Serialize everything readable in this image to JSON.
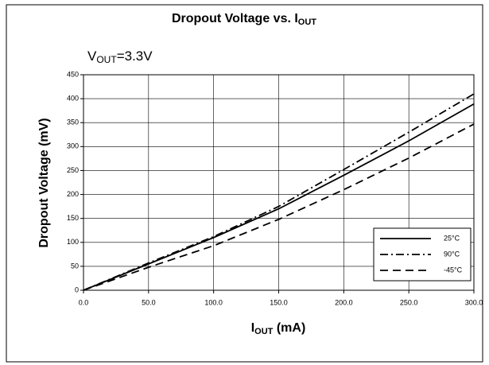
{
  "chart_data": {
    "type": "line",
    "title": {
      "text": "Dropout Voltage vs. I",
      "sub": "OUT"
    },
    "annotation": {
      "text": "V",
      "sub": "OUT",
      "tail": "=3.3V"
    },
    "xlabel": {
      "text": "I",
      "sub": "OUT",
      "tail": " (mA)"
    },
    "ylabel": "Dropout Voltage (mV)",
    "x": [
      0,
      50,
      100,
      150,
      200,
      250,
      300
    ],
    "series": [
      {
        "name": "25°C",
        "color": "#000000",
        "dash": "solid",
        "values": [
          0,
          55,
          110,
          170,
          240,
          312,
          389
        ]
      },
      {
        "name": "90°C",
        "color": "#000000",
        "dash": "dash-dot",
        "values": [
          0,
          57,
          112,
          175,
          252,
          330,
          410
        ]
      },
      {
        "name": "-45°C",
        "color": "#000000",
        "dash": "dash",
        "values": [
          0,
          48,
          93,
          148,
          210,
          276,
          347
        ]
      }
    ],
    "xlim": [
      0,
      300
    ],
    "xticks": [
      {
        "value": 0,
        "label": "0.0"
      },
      {
        "value": 50,
        "label": "50.0"
      },
      {
        "value": 100,
        "label": "100.0"
      },
      {
        "value": 150,
        "label": "150.0"
      },
      {
        "value": 200,
        "label": "200.0"
      },
      {
        "value": 250,
        "label": "250.0"
      },
      {
        "value": 300,
        "label": "300.0"
      }
    ],
    "ylim": [
      0,
      450
    ],
    "yticks": [
      0,
      50,
      100,
      150,
      200,
      250,
      300,
      350,
      400,
      450
    ],
    "grid": true,
    "legend": "lower right"
  }
}
